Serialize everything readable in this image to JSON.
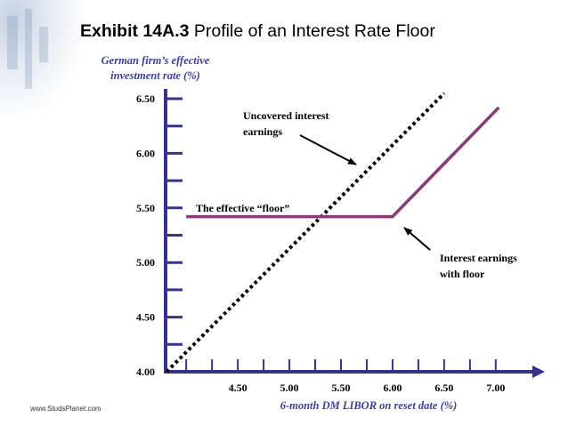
{
  "header": {
    "exhibit": "Exhibit 14A.3",
    "title": "Profile of an Interest Rate Floor"
  },
  "footer": {
    "source": "www.StudsPlanet.com"
  },
  "colors": {
    "axis": "#35348a",
    "floor_line": "#8a3a78",
    "uncovered_line": "#000000",
    "label_text": "#3b3fa0"
  },
  "chart_data": {
    "type": "line",
    "title": "",
    "ylabel_line1": "German firm’s effective",
    "ylabel_line2": "investment rate (%)",
    "xlabel": "6-month DM LIBOR on reset date (%)",
    "xlim": [
      3.8,
      7.2
    ],
    "ylim": [
      4.0,
      6.5
    ],
    "x_ticks": [
      4.5,
      5.0,
      5.5,
      6.0,
      6.5,
      7.0
    ],
    "x_tick_labels": [
      "4.50",
      "5.00",
      "5.50",
      "6.00",
      "6.50",
      "7.00"
    ],
    "y_ticks": [
      4.0,
      4.5,
      5.0,
      5.5,
      6.0,
      6.5
    ],
    "y_tick_labels": [
      "4.00",
      "4.50",
      "5.00",
      "5.50",
      "6.00",
      "6.50"
    ],
    "series": [
      {
        "key": "uncovered",
        "style": "dotted",
        "points": [
          [
            3.81,
            4.0
          ],
          [
            6.5,
            6.55
          ]
        ]
      },
      {
        "key": "floor",
        "style": "solid",
        "points": [
          [
            4.0,
            5.42
          ],
          [
            6.0,
            5.42
          ],
          [
            7.03,
            6.42
          ]
        ]
      }
    ],
    "annotations": {
      "uncovered": {
        "line1": "Uncovered interest",
        "line2": "earnings"
      },
      "floor_label": "The effective “floor”",
      "with_floor": {
        "line1": "Interest earnings",
        "line2": "with floor"
      }
    }
  }
}
